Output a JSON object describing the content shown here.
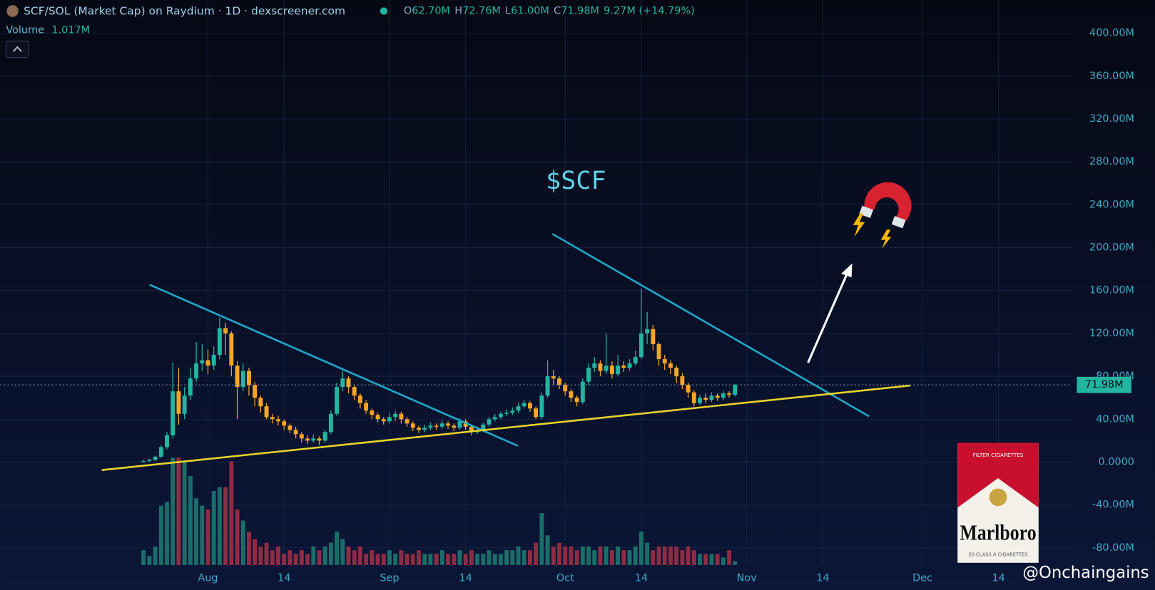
{
  "chart_data": {
    "type": "candlestick",
    "header": {
      "pair": "SCF/SOL (Market Cap) on Raydium · 1D · dexscreener.com",
      "ohlc": [
        {
          "label": "O",
          "value": "62.70M"
        },
        {
          "label": "H",
          "value": "72.76M"
        },
        {
          "label": "L",
          "value": "61.00M"
        },
        {
          "label": "C",
          "value": "71.98M"
        }
      ],
      "change": "9.27M (+14.79%)"
    },
    "x": [
      203,
      204,
      205,
      206,
      207,
      208,
      209,
      210,
      211,
      212,
      213,
      214,
      215,
      216,
      217,
      218,
      219,
      220,
      221,
      222,
      223,
      224,
      225,
      226,
      227,
      228,
      229,
      230,
      231,
      232,
      233,
      234,
      235,
      236,
      237,
      238,
      239,
      240,
      241,
      242,
      243,
      244,
      245,
      246,
      247,
      248,
      249,
      250,
      251,
      252,
      253,
      254,
      255,
      256,
      257,
      258,
      259,
      260,
      261,
      262,
      263,
      264,
      265,
      266,
      267,
      268,
      269,
      270,
      271,
      272,
      273,
      274,
      275,
      276,
      277,
      278,
      279,
      280,
      281,
      282,
      283,
      284,
      285,
      286,
      287,
      288,
      289,
      290,
      291,
      292,
      293,
      294,
      295,
      296,
      297,
      298,
      299,
      300,
      301,
      302,
      303,
      304
    ],
    "open": [
      0,
      1,
      2,
      5,
      14,
      25,
      66,
      45,
      62,
      78,
      92,
      95,
      90,
      100,
      125,
      120,
      90,
      70,
      85,
      72,
      60,
      52,
      42,
      40,
      38,
      34,
      30,
      26,
      22,
      20,
      22,
      20,
      28,
      45,
      70,
      78,
      70,
      62,
      55,
      48,
      44,
      40,
      38,
      42,
      45,
      40,
      36,
      32,
      30,
      32,
      34,
      33,
      36,
      34,
      32,
      38,
      33,
      28,
      30,
      35,
      40,
      42,
      45,
      46,
      48,
      52,
      55,
      50,
      42,
      62,
      80,
      78,
      72,
      66,
      60,
      56,
      75,
      88,
      92,
      85,
      90,
      82,
      90,
      88,
      92,
      98,
      120,
      124,
      110,
      96,
      92,
      88,
      80,
      72,
      65,
      55,
      60,
      58,
      62,
      60,
      64,
      62.7
    ],
    "high": [
      2,
      3,
      6,
      16,
      28,
      93,
      88,
      70,
      88,
      112,
      110,
      105,
      108,
      135,
      130,
      122,
      94,
      92,
      88,
      75,
      62,
      55,
      45,
      43,
      40,
      36,
      33,
      28,
      25,
      26,
      24,
      30,
      48,
      74,
      85,
      80,
      72,
      64,
      58,
      50,
      46,
      42,
      46,
      48,
      47,
      42,
      38,
      34,
      35,
      37,
      36,
      39,
      38,
      36,
      41,
      40,
      35,
      33,
      37,
      42,
      45,
      47,
      49,
      51,
      55,
      58,
      57,
      52,
      65,
      95,
      86,
      80,
      74,
      68,
      62,
      78,
      92,
      98,
      95,
      120,
      94,
      100,
      94,
      96,
      104,
      162,
      140,
      128,
      112,
      100,
      95,
      90,
      83,
      74,
      67,
      63,
      64,
      65,
      64,
      66,
      66,
      72.76
    ],
    "low": [
      0,
      0,
      1,
      4,
      12,
      22,
      35,
      40,
      58,
      75,
      85,
      82,
      86,
      96,
      100,
      80,
      40,
      66,
      62,
      52,
      46,
      40,
      36,
      34,
      30,
      27,
      22,
      18,
      17,
      18,
      16,
      18,
      26,
      43,
      66,
      64,
      58,
      50,
      45,
      40,
      37,
      35,
      36,
      38,
      36,
      33,
      29,
      27,
      28,
      30,
      30,
      31,
      31,
      29,
      30,
      30,
      25,
      26,
      28,
      33,
      38,
      40,
      43,
      44,
      46,
      50,
      47,
      40,
      40,
      60,
      72,
      68,
      62,
      56,
      52,
      54,
      72,
      84,
      80,
      82,
      78,
      80,
      84,
      85,
      90,
      96,
      110,
      104,
      90,
      86,
      82,
      74,
      68,
      60,
      52,
      53,
      55,
      56,
      57,
      58,
      60,
      61
    ],
    "close": [
      1,
      2,
      5,
      14,
      25,
      66,
      45,
      62,
      78,
      92,
      95,
      90,
      100,
      125,
      120,
      90,
      70,
      85,
      72,
      60,
      52,
      42,
      40,
      38,
      34,
      30,
      26,
      22,
      20,
      22,
      20,
      28,
      45,
      70,
      78,
      70,
      62,
      55,
      48,
      44,
      40,
      38,
      42,
      45,
      40,
      36,
      32,
      30,
      32,
      34,
      33,
      36,
      34,
      32,
      38,
      33,
      28,
      30,
      35,
      40,
      42,
      45,
      46,
      48,
      52,
      55,
      50,
      42,
      62,
      80,
      78,
      72,
      66,
      60,
      56,
      75,
      88,
      92,
      85,
      90,
      82,
      90,
      88,
      92,
      98,
      120,
      124,
      110,
      96,
      92,
      88,
      80,
      72,
      65,
      55,
      60,
      58,
      62,
      60,
      64,
      62.7,
      71.98
    ],
    "volume": {
      "name": "Volume",
      "last_label": "1.017M",
      "values": [
        4,
        2.5,
        5,
        16,
        17,
        29,
        29,
        28,
        24,
        18,
        16,
        15,
        20,
        21,
        21,
        28,
        15,
        12,
        9,
        7,
        5,
        6,
        4,
        5,
        3,
        4,
        3,
        4,
        3,
        5,
        4,
        5,
        6,
        9,
        7,
        5,
        4,
        5,
        3,
        4,
        3,
        3,
        4,
        3,
        4,
        3,
        3,
        4,
        3,
        3,
        3,
        4,
        3,
        3,
        4,
        3,
        4,
        3,
        3,
        4,
        3,
        3,
        4,
        4,
        5,
        4,
        4,
        6,
        14,
        8,
        5,
        6,
        5,
        5,
        4,
        5,
        5,
        4,
        5,
        5,
        4,
        5,
        4,
        4,
        5,
        9,
        6,
        4,
        5,
        5,
        5,
        5,
        4,
        5,
        4,
        3,
        3,
        3,
        3,
        2,
        4,
        1.017
      ]
    },
    "up_color": "#22b5a0",
    "down_color": "#f5a623",
    "volume_up_color": "#1a6e6a",
    "volume_down_color": "#8c2d44",
    "price_line": {
      "value": 71.98,
      "label": "71.98M"
    },
    "xlim": [
      178.5,
      361.5
    ],
    "xticks": [
      {
        "value": 214,
        "label": "Aug"
      },
      {
        "value": 227,
        "label": "14"
      },
      {
        "value": 245,
        "label": "Sep"
      },
      {
        "value": 258,
        "label": "14"
      },
      {
        "value": 275,
        "label": "Oct"
      },
      {
        "value": 288,
        "label": "14"
      },
      {
        "value": 306,
        "label": "Nov"
      },
      {
        "value": 319,
        "label": "14"
      },
      {
        "value": 336,
        "label": "Dec"
      },
      {
        "value": 349,
        "label": "14"
      }
    ],
    "ylim": [
      -96,
      431
    ],
    "yticks": [
      {
        "value": -80,
        "label": "-80.00M"
      },
      {
        "value": -40,
        "label": "-40.00M"
      },
      {
        "value": 0,
        "label": "0.0000"
      },
      {
        "value": 40,
        "label": "40.00M"
      },
      {
        "value": 80,
        "label": "80.00M"
      },
      {
        "value": 120,
        "label": "120.00M"
      },
      {
        "value": 160,
        "label": "160.00M"
      },
      {
        "value": 200,
        "label": "200.00M"
      },
      {
        "value": 240,
        "label": "240.00M"
      },
      {
        "value": 280,
        "label": "280.00M"
      },
      {
        "value": 320,
        "label": "320.00M"
      },
      {
        "value": 360,
        "label": "360.00M"
      },
      {
        "value": 400,
        "label": "400.00M"
      }
    ],
    "grid": true,
    "annotation": "$SCF"
  },
  "pack": {
    "top": "FILTER CIGARETTES",
    "brand": "Marlboro",
    "bottom": "20 CLASS A CIGARETTES"
  },
  "watermark": "@Onchaingains"
}
